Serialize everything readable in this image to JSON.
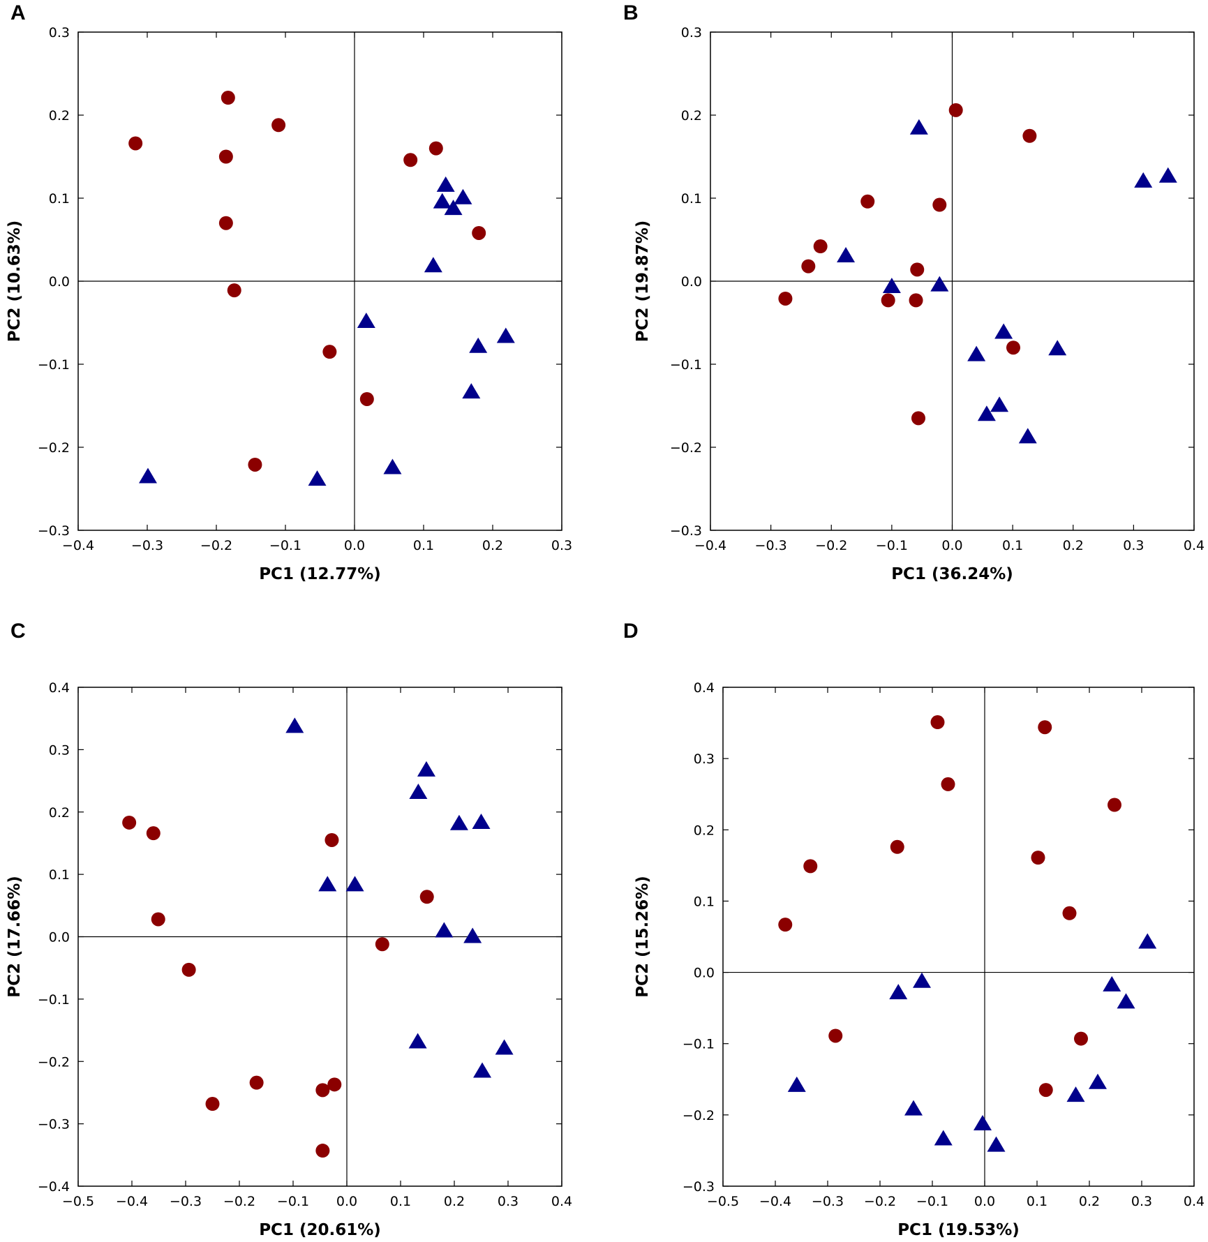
{
  "colors": {
    "circle": "#8b0000",
    "triangle": "#00008b",
    "axis": "#000000"
  },
  "chart_data": [
    {
      "panel": "A",
      "type": "scatter",
      "title": "",
      "xlabel": "PC1 (12.77%)",
      "ylabel": "PC2 (10.63%)",
      "xlim": [
        -0.4,
        0.3
      ],
      "ylim": [
        -0.3,
        0.3
      ],
      "xticks": [
        -0.4,
        -0.3,
        -0.2,
        -0.1,
        0.0,
        0.1,
        0.2,
        0.3
      ],
      "yticks": [
        -0.3,
        -0.2,
        -0.1,
        0.0,
        0.1,
        0.2,
        0.3
      ],
      "xtick_labels": [
        "−0.4",
        "−0.3",
        "−0.2",
        "−0.1",
        "0.0",
        "0.1",
        "0.2",
        "0.3"
      ],
      "ytick_labels": [
        "−0.3",
        "−0.2",
        "−0.1",
        "0.0",
        "0.1",
        "0.2",
        "0.3"
      ],
      "grid": false,
      "series": [
        {
          "name": "circle group",
          "marker": "circle",
          "points": [
            [
              -0.317,
              0.166
            ],
            [
              -0.183,
              0.221
            ],
            [
              -0.11,
              0.188
            ],
            [
              -0.186,
              0.15
            ],
            [
              -0.186,
              0.07
            ],
            [
              -0.174,
              -0.011
            ],
            [
              -0.036,
              -0.085
            ],
            [
              0.018,
              -0.142
            ],
            [
              -0.144,
              -0.221
            ],
            [
              0.081,
              0.146
            ],
            [
              0.118,
              0.16
            ],
            [
              0.18,
              0.058
            ]
          ]
        },
        {
          "name": "triangle group",
          "marker": "triangle",
          "points": [
            [
              0.132,
              0.116
            ],
            [
              0.127,
              0.096
            ],
            [
              0.143,
              0.088
            ],
            [
              0.157,
              0.101
            ],
            [
              0.114,
              0.019
            ],
            [
              0.017,
              -0.048
            ],
            [
              0.179,
              -0.078
            ],
            [
              0.219,
              -0.066
            ],
            [
              0.169,
              -0.133
            ],
            [
              0.055,
              -0.224
            ],
            [
              -0.054,
              -0.238
            ],
            [
              -0.299,
              -0.235
            ]
          ]
        }
      ]
    },
    {
      "panel": "B",
      "type": "scatter",
      "title": "",
      "xlabel": "PC1 (36.24%)",
      "ylabel": "PC2 (19.87%)",
      "xlim": [
        -0.4,
        0.4
      ],
      "ylim": [
        -0.3,
        0.3
      ],
      "xticks": [
        -0.4,
        -0.3,
        -0.2,
        -0.1,
        0.0,
        0.1,
        0.2,
        0.3,
        0.4
      ],
      "yticks": [
        -0.3,
        -0.2,
        -0.1,
        0.0,
        0.1,
        0.2,
        0.3
      ],
      "xtick_labels": [
        "−0.4",
        "−0.3",
        "−0.2",
        "−0.1",
        "0.0",
        "0.1",
        "0.2",
        "0.3",
        "0.4"
      ],
      "ytick_labels": [
        "−0.3",
        "−0.2",
        "−0.1",
        "0.0",
        "0.1",
        "0.2",
        "0.3"
      ],
      "grid": false,
      "series": [
        {
          "name": "circle group",
          "marker": "circle",
          "points": [
            [
              0.006,
              0.206
            ],
            [
              0.128,
              0.175
            ],
            [
              -0.14,
              0.096
            ],
            [
              -0.021,
              0.092
            ],
            [
              -0.218,
              0.042
            ],
            [
              -0.238,
              0.018
            ],
            [
              -0.276,
              -0.021
            ],
            [
              -0.106,
              -0.023
            ],
            [
              -0.06,
              -0.023
            ],
            [
              -0.058,
              0.014
            ],
            [
              0.101,
              -0.08
            ],
            [
              -0.056,
              -0.165
            ]
          ]
        },
        {
          "name": "triangle group",
          "marker": "triangle",
          "points": [
            [
              -0.055,
              0.185
            ],
            [
              0.316,
              0.121
            ],
            [
              0.357,
              0.127
            ],
            [
              -0.176,
              0.031
            ],
            [
              -0.1,
              -0.006
            ],
            [
              -0.021,
              -0.004
            ],
            [
              0.085,
              -0.061
            ],
            [
              0.174,
              -0.081
            ],
            [
              0.04,
              -0.088
            ],
            [
              0.057,
              -0.16
            ],
            [
              0.078,
              -0.149
            ],
            [
              0.125,
              -0.187
            ]
          ]
        }
      ]
    },
    {
      "panel": "C",
      "type": "scatter",
      "title": "",
      "xlabel": "PC1 (20.61%)",
      "ylabel": "PC2 (17.66%)",
      "xlim": [
        -0.5,
        0.4
      ],
      "ylim": [
        -0.4,
        0.4
      ],
      "xticks": [
        -0.5,
        -0.4,
        -0.3,
        -0.2,
        -0.1,
        0.0,
        0.1,
        0.2,
        0.3,
        0.4
      ],
      "yticks": [
        -0.4,
        -0.3,
        -0.2,
        -0.1,
        0.0,
        0.1,
        0.2,
        0.3,
        0.4
      ],
      "xtick_labels": [
        "−0.5",
        "−0.4",
        "−0.3",
        "−0.2",
        "−0.1",
        "0.0",
        "0.1",
        "0.2",
        "0.3",
        "0.4"
      ],
      "ytick_labels": [
        "−0.4",
        "−0.3",
        "−0.2",
        "−0.1",
        "0.0",
        "0.1",
        "0.2",
        "0.3",
        "0.4"
      ],
      "grid": false,
      "series": [
        {
          "name": "circle group",
          "marker": "circle",
          "points": [
            [
              -0.405,
              0.183
            ],
            [
              -0.36,
              0.166
            ],
            [
              -0.351,
              0.028
            ],
            [
              -0.294,
              -0.053
            ],
            [
              -0.25,
              -0.268
            ],
            [
              -0.168,
              -0.234
            ],
            [
              -0.028,
              0.155
            ],
            [
              0.149,
              0.064
            ],
            [
              0.066,
              -0.012
            ],
            [
              -0.045,
              -0.246
            ],
            [
              -0.023,
              -0.237
            ],
            [
              -0.045,
              -0.343
            ]
          ]
        },
        {
          "name": "triangle group",
          "marker": "triangle",
          "points": [
            [
              -0.097,
              0.338
            ],
            [
              0.148,
              0.268
            ],
            [
              0.133,
              0.232
            ],
            [
              0.209,
              0.182
            ],
            [
              0.25,
              0.184
            ],
            [
              -0.036,
              0.084
            ],
            [
              0.015,
              0.084
            ],
            [
              0.181,
              0.01
            ],
            [
              0.234,
              0.001
            ],
            [
              0.132,
              -0.168
            ],
            [
              0.293,
              -0.178
            ],
            [
              0.252,
              -0.215
            ]
          ]
        }
      ]
    },
    {
      "panel": "D",
      "type": "scatter",
      "title": "",
      "xlabel": "PC1 (19.53%)",
      "ylabel": "PC2 (15.26%)",
      "xlim": [
        -0.5,
        0.4
      ],
      "ylim": [
        -0.3,
        0.4
      ],
      "xticks": [
        -0.5,
        -0.4,
        -0.3,
        -0.2,
        -0.1,
        0.0,
        0.1,
        0.2,
        0.3,
        0.4
      ],
      "yticks": [
        -0.3,
        -0.2,
        -0.1,
        0.0,
        0.1,
        0.2,
        0.3,
        0.4
      ],
      "xtick_labels": [
        "−0.5",
        "−0.4",
        "−0.3",
        "−0.2",
        "−0.1",
        "0.0",
        "0.1",
        "0.2",
        "0.3",
        "0.4"
      ],
      "ytick_labels": [
        "−0.3",
        "−0.2",
        "−0.1",
        "0.0",
        "0.1",
        "0.2",
        "0.3",
        "0.4"
      ],
      "grid": false,
      "series": [
        {
          "name": "circle group",
          "marker": "circle",
          "points": [
            [
              -0.09,
              0.351
            ],
            [
              0.115,
              0.344
            ],
            [
              -0.07,
              0.264
            ],
            [
              0.248,
              0.235
            ],
            [
              -0.167,
              0.176
            ],
            [
              -0.333,
              0.149
            ],
            [
              -0.381,
              0.067
            ],
            [
              0.102,
              0.161
            ],
            [
              0.162,
              0.083
            ],
            [
              -0.285,
              -0.089
            ],
            [
              0.184,
              -0.093
            ],
            [
              0.117,
              -0.165
            ]
          ]
        },
        {
          "name": "triangle group",
          "marker": "triangle",
          "points": [
            [
              0.311,
              0.043
            ],
            [
              -0.12,
              -0.012
            ],
            [
              -0.165,
              -0.028
            ],
            [
              0.243,
              -0.017
            ],
            [
              0.27,
              -0.041
            ],
            [
              -0.359,
              -0.158
            ],
            [
              0.216,
              -0.154
            ],
            [
              0.174,
              -0.172
            ],
            [
              -0.136,
              -0.191
            ],
            [
              -0.004,
              -0.212
            ],
            [
              -0.079,
              -0.233
            ],
            [
              0.022,
              -0.242
            ]
          ]
        }
      ]
    }
  ]
}
